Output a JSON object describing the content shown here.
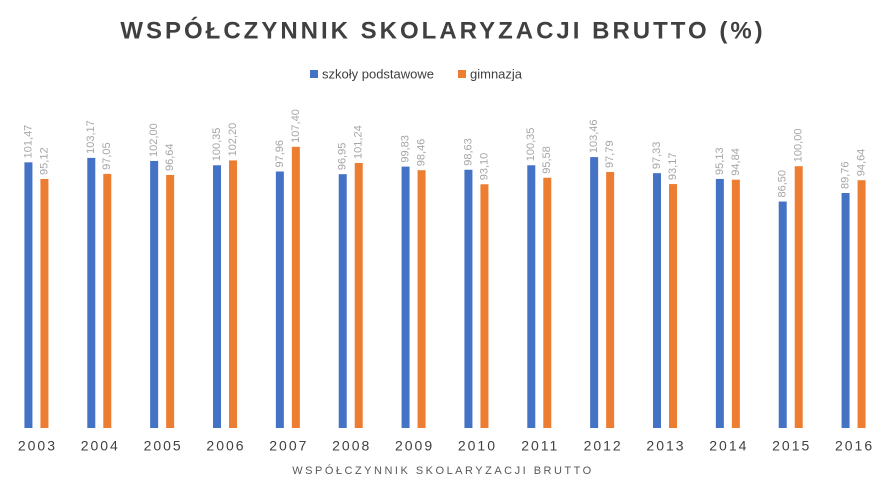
{
  "chart_data": {
    "type": "bar",
    "title": "WSPÓŁCZYNNIK SKOLARYZACJI BRUTTO (%)",
    "x_label": "WSPÓŁCZYNNIK SKOLARYZACJI BRUTTO",
    "categories": [
      "2003",
      "2004",
      "2005",
      "2006",
      "2007",
      "2008",
      "2009",
      "2010",
      "2011",
      "2012",
      "2013",
      "2014",
      "2015",
      "2016"
    ],
    "series": [
      {
        "name": "szkoły podstawowe",
        "color": "#4472c4",
        "values": [
          101.47,
          103.17,
          102.0,
          100.35,
          97.96,
          96.95,
          99.83,
          98.63,
          100.35,
          103.46,
          97.33,
          95.13,
          86.5,
          89.76
        ],
        "value_labels": [
          "101,47",
          "103,17",
          "102,00",
          "100,35",
          "97,96",
          "96,95",
          "99,83",
          "98,63",
          "100,35",
          "103,46",
          "97,33",
          "95,13",
          "86,50",
          "89,76"
        ]
      },
      {
        "name": "gimnazja",
        "color": "#ed7d31",
        "values": [
          95.12,
          97.05,
          96.64,
          102.2,
          107.4,
          101.24,
          98.46,
          93.1,
          95.58,
          97.79,
          93.17,
          94.84,
          100.0,
          94.64
        ],
        "value_labels": [
          "95,12",
          "97,05",
          "96,64",
          "102,20",
          "107,40",
          "101,24",
          "98,46",
          "93,10",
          "95,58",
          "97,79",
          "93,17",
          "94,84",
          "100,00",
          "94,64"
        ]
      }
    ],
    "ylim": [
      0,
      110
    ],
    "legend": "top"
  }
}
